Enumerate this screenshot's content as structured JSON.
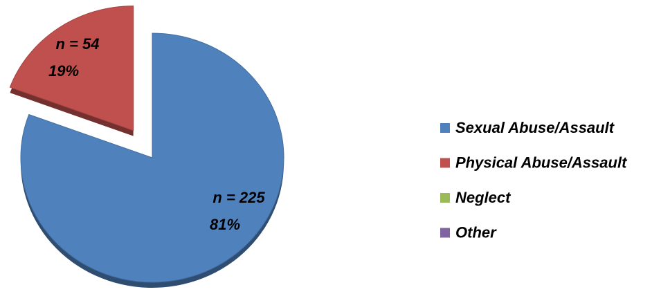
{
  "chart_data": {
    "type": "pie",
    "categories": [
      "Sexual Abuse/Assault",
      "Physical Abuse/Assault",
      "Neglect",
      "Other"
    ],
    "values": [
      225,
      54,
      0,
      0
    ],
    "value_labels": [
      "n = 225",
      "n = 54",
      null,
      null
    ],
    "percents": [
      81,
      19,
      0,
      0
    ],
    "percent_labels": [
      "81%",
      "19%",
      null,
      null
    ],
    "colors": [
      "#4f81bd",
      "#c0504d",
      "#9bbb59",
      "#8064a2"
    ],
    "explode": [
      false,
      true,
      false,
      false
    ],
    "legend": "right"
  }
}
